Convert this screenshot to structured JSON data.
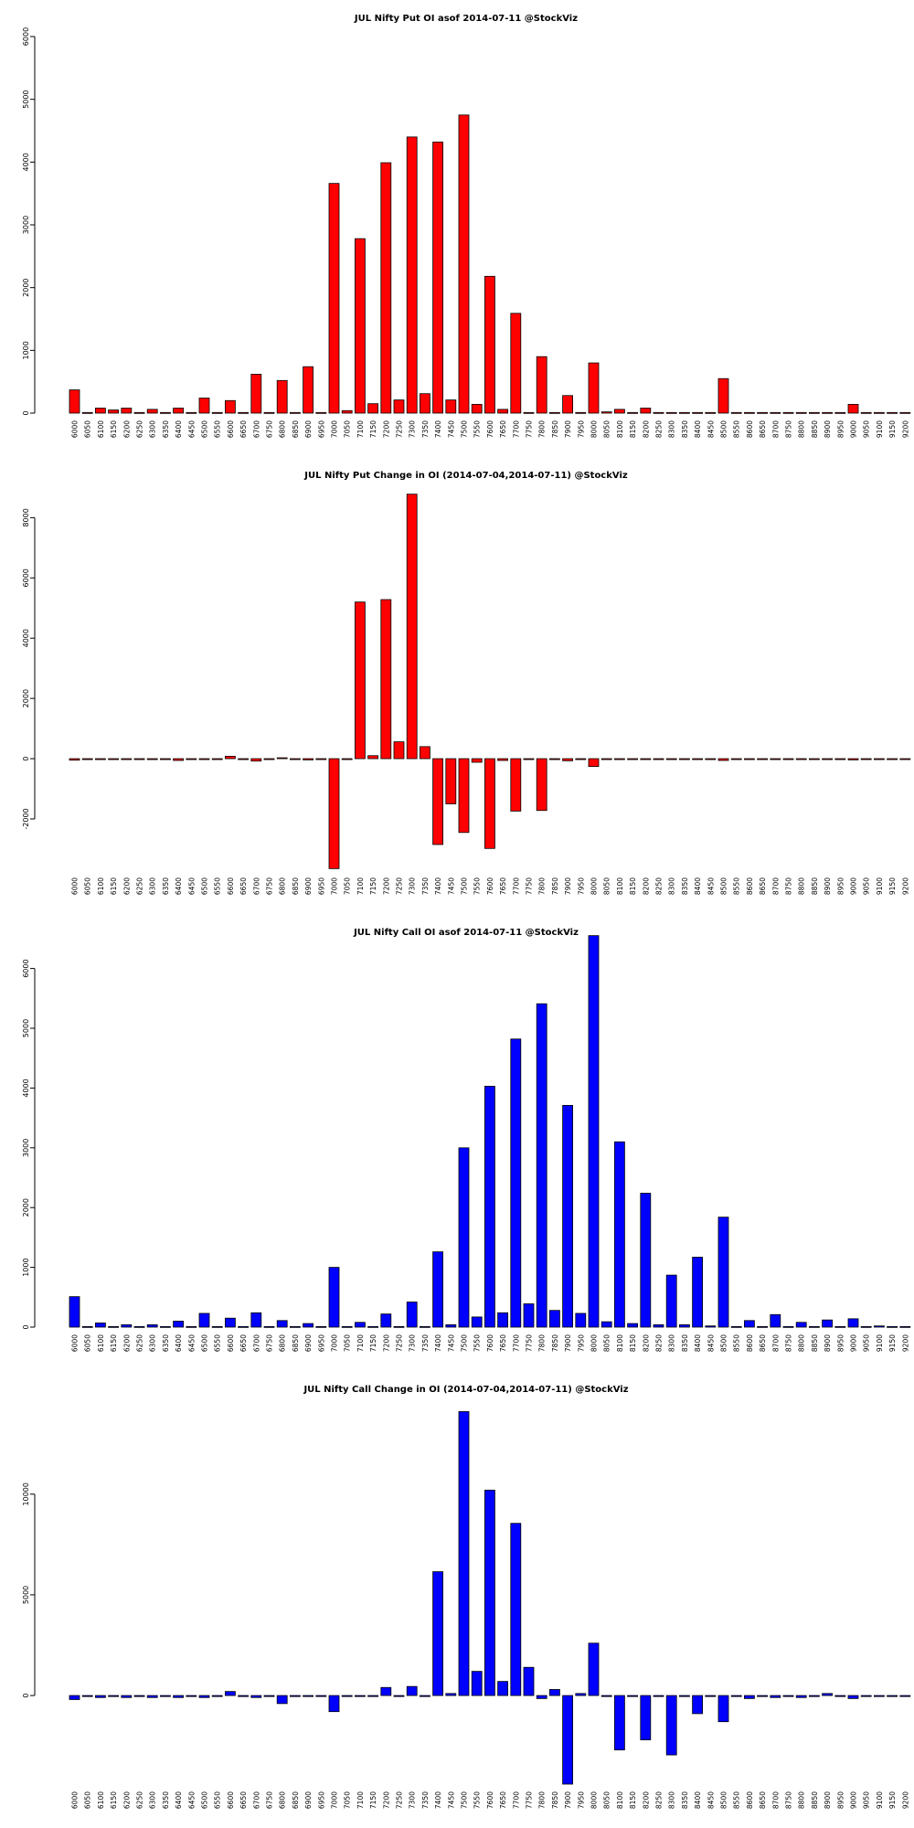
{
  "strikes": [
    "6000",
    "6050",
    "6100",
    "6150",
    "6200",
    "6250",
    "6300",
    "6350",
    "6400",
    "6450",
    "6500",
    "6550",
    "6600",
    "6650",
    "6700",
    "6750",
    "6800",
    "6850",
    "6900",
    "6950",
    "7000",
    "7050",
    "7100",
    "7150",
    "7200",
    "7250",
    "7300",
    "7350",
    "7400",
    "7450",
    "7500",
    "7550",
    "7600",
    "7650",
    "7700",
    "7750",
    "7800",
    "7850",
    "7900",
    "7950",
    "8000",
    "8050",
    "8100",
    "8150",
    "8200",
    "8250",
    "8300",
    "8350",
    "8400",
    "8450",
    "8500",
    "8550",
    "8600",
    "8650",
    "8700",
    "8750",
    "8800",
    "8850",
    "8900",
    "8950",
    "9000",
    "9050",
    "9100",
    "9150",
    "9200"
  ],
  "chart_data": [
    {
      "type": "bar",
      "title": "JUL Nifty Put OI asof 2014-07-11 @StockViz",
      "color": "#ff0000",
      "ylim": [
        0,
        6000
      ],
      "yticks": [
        0,
        1000,
        2000,
        3000,
        4000,
        5000,
        6000
      ],
      "values": [
        370,
        10,
        80,
        50,
        80,
        10,
        60,
        10,
        80,
        10,
        240,
        10,
        200,
        10,
        620,
        10,
        520,
        10,
        740,
        10,
        3660,
        40,
        2780,
        150,
        3990,
        210,
        4400,
        310,
        4320,
        210,
        4750,
        140,
        2180,
        60,
        1590,
        10,
        900,
        10,
        280,
        10,
        800,
        20,
        60,
        10,
        80,
        10,
        10,
        10,
        10,
        10,
        550,
        10,
        10,
        10,
        10,
        10,
        10,
        10,
        10,
        10,
        140,
        10,
        10,
        10,
        10
      ]
    },
    {
      "type": "bar",
      "title": "JUL Nifty Put Change in OI (2014-07-04,2014-07-11) @StockViz",
      "color": "#ff0000",
      "ylim": [
        -3700,
        8800
      ],
      "yticks": [
        -2000,
        0,
        2000,
        4000,
        6000,
        8000
      ],
      "values": [
        -50,
        -20,
        -20,
        -20,
        -20,
        -20,
        -20,
        -20,
        -60,
        -20,
        -20,
        -20,
        80,
        -20,
        -80,
        -20,
        30,
        -20,
        -40,
        -20,
        -3650,
        -20,
        5200,
        100,
        5280,
        560,
        8780,
        400,
        -2850,
        -1500,
        -2450,
        -120,
        -2980,
        -60,
        -1740,
        -20,
        -1720,
        -20,
        -70,
        -20,
        -260,
        -20,
        -20,
        -20,
        -20,
        -20,
        -20,
        -20,
        -20,
        -20,
        -60,
        -20,
        -20,
        -20,
        -20,
        -20,
        -20,
        -20,
        -20,
        -20,
        -40,
        -20,
        -20,
        -20,
        -20
      ]
    },
    {
      "type": "bar",
      "title": "JUL Nifty Call OI asof 2014-07-11 @StockViz",
      "color": "#0000ff",
      "ylim": [
        0,
        6300
      ],
      "yticks": [
        0,
        1000,
        2000,
        3000,
        4000,
        5000,
        6000
      ],
      "values": [
        510,
        10,
        70,
        10,
        40,
        10,
        40,
        10,
        100,
        10,
        230,
        10,
        150,
        10,
        240,
        10,
        110,
        10,
        60,
        10,
        1000,
        10,
        80,
        10,
        220,
        10,
        420,
        10,
        1260,
        40,
        3000,
        170,
        4030,
        240,
        4820,
        390,
        5410,
        280,
        3710,
        230,
        6550,
        90,
        3100,
        60,
        2240,
        40,
        870,
        40,
        1170,
        20,
        1840,
        10,
        110,
        10,
        210,
        10,
        80,
        10,
        120,
        10,
        140,
        10,
        20,
        10,
        10
      ]
    },
    {
      "type": "bar",
      "title": "JUL Nifty Call Change in OI (2014-07-04,2014-07-11) @StockViz",
      "color": "#0000ff",
      "ylim": [
        -4400,
        14300
      ],
      "yticks": [
        0,
        5000,
        10000
      ],
      "values": [
        -200,
        -50,
        -100,
        -50,
        -100,
        -50,
        -100,
        -50,
        -100,
        -50,
        -100,
        -50,
        200,
        -50,
        -100,
        -50,
        -400,
        -50,
        -50,
        -50,
        -800,
        -50,
        -50,
        -50,
        400,
        -50,
        450,
        -50,
        6150,
        100,
        14100,
        1200,
        10200,
        700,
        8550,
        1400,
        -150,
        300,
        -4400,
        100,
        2600,
        -50,
        -2700,
        -50,
        -2200,
        -50,
        -2950,
        -50,
        -900,
        -50,
        -1300,
        -50,
        -150,
        -50,
        -100,
        -50,
        -100,
        -50,
        100,
        -50,
        -150,
        -50,
        -50,
        -50,
        -50
      ]
    }
  ]
}
